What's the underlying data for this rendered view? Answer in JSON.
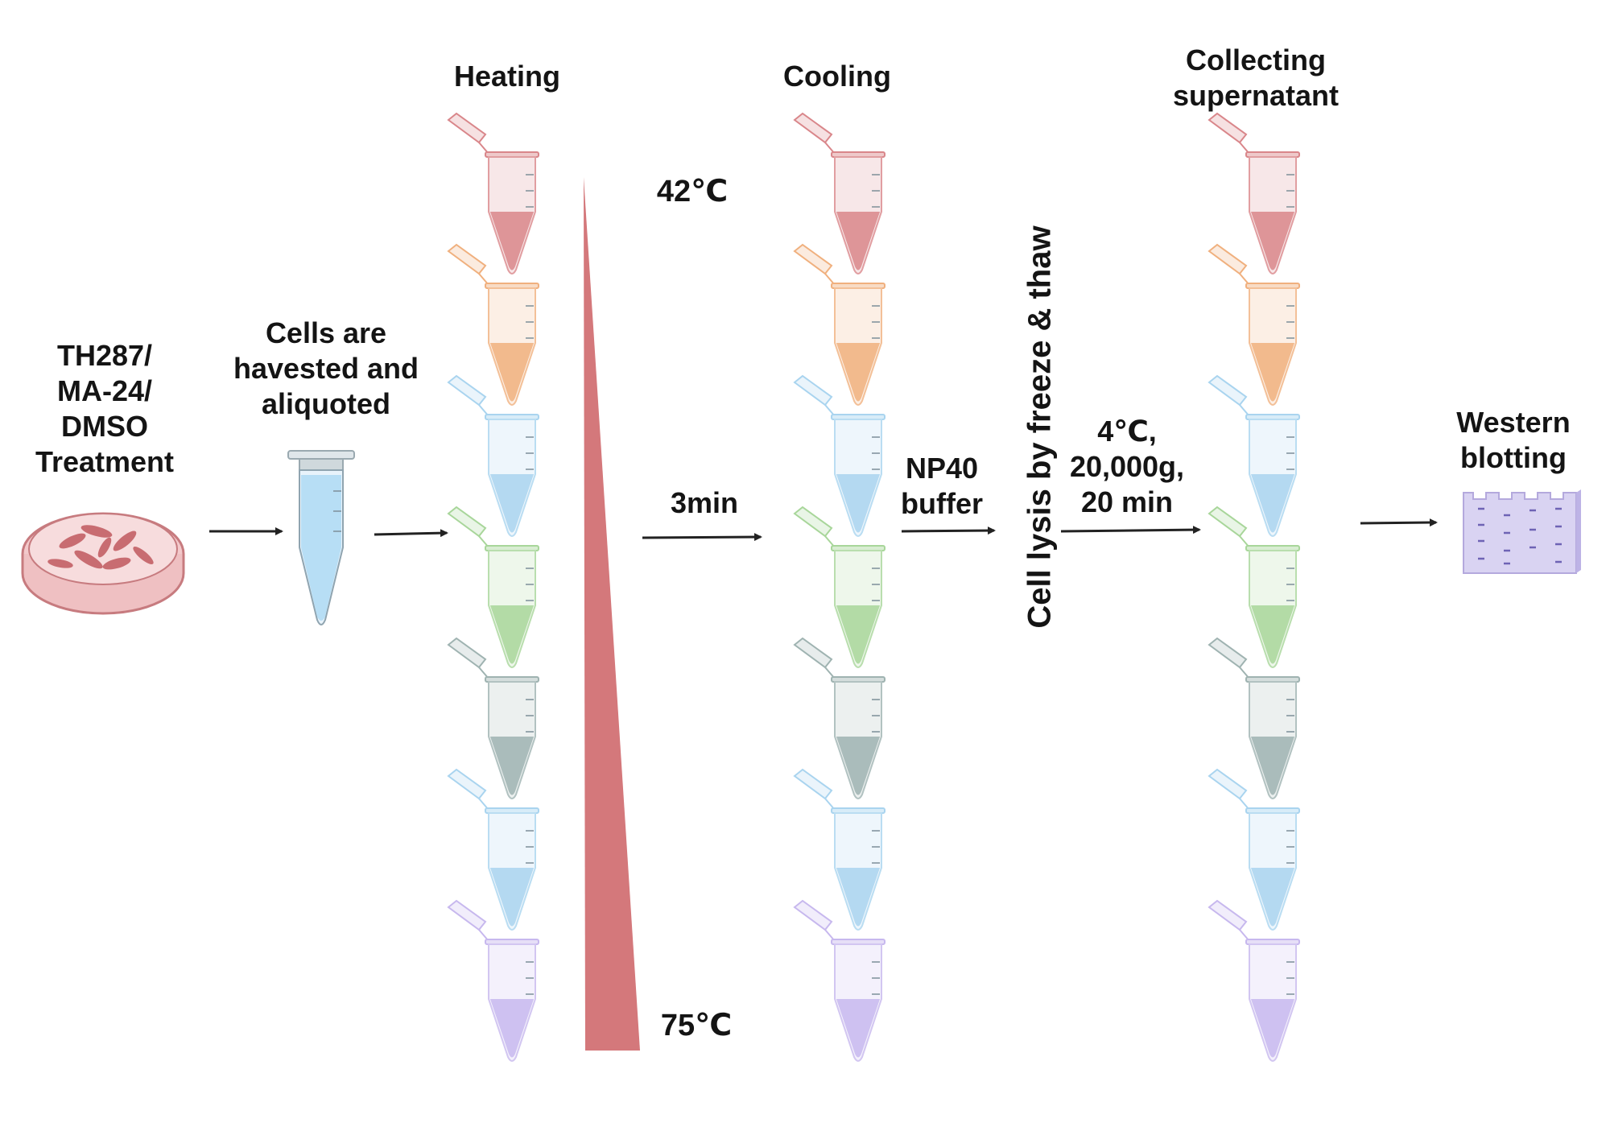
{
  "steps": {
    "treatment": "TH287/\nMA-24/\nDMSO\nTreatment",
    "harvest": "Cells are\nhavested and\naliquoted",
    "heating": "Heating",
    "cooling": "Cooling",
    "collecting": "Collecting\nsupernatant",
    "western": "Western\nblotting"
  },
  "temperature": {
    "top": "42℃",
    "bottom": "75℃"
  },
  "incubation": "3min",
  "buffer": "NP40\nbuffer",
  "lysis": "Cell lysis by freeze & thaw",
  "centrifuge": "4℃,\n20,000g,\n20 min",
  "tube_colors": [
    "#d9868a",
    "#f0b07e",
    "#a9d4ef",
    "#a8d69a",
    "#9fb3b1",
    "#a9d4ef",
    "#c7b8ee"
  ],
  "colors": {
    "gradient": "#d4787b",
    "arrow": "#222222",
    "dish": "#e7b2b4",
    "gel": "#d9d3f2"
  }
}
